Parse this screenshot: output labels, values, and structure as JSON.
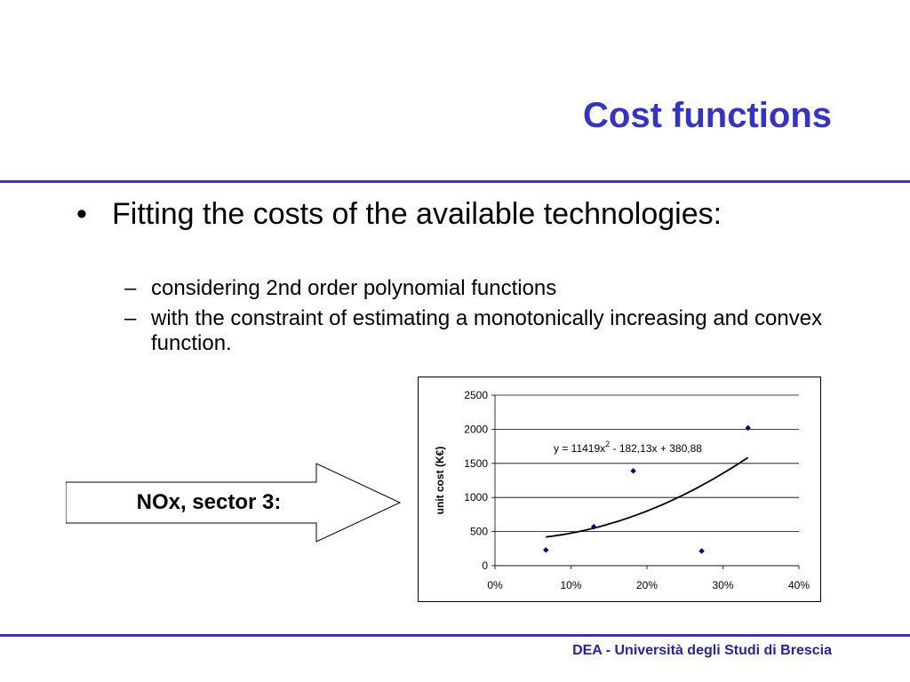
{
  "slide": {
    "title": "Cost functions",
    "bullet": {
      "symbol": "•",
      "text": "Fitting the costs of the available technologies:",
      "subitems": [
        {
          "dash": "–",
          "text": "considering 2nd order polynomial functions"
        },
        {
          "dash": "–",
          "text": "with the constraint of estimating a monotonically increasing and convex function."
        }
      ]
    },
    "arrow_label": "NOx, sector 3:",
    "footer": "DEA - Università degli Studi di Brescia",
    "colors": {
      "accent": "#3333cc",
      "footer": "#2222aa",
      "marker": "#000080"
    }
  },
  "chart_data": {
    "type": "scatter",
    "ylabel": "unit cost (K€)",
    "xlabel": "",
    "xlim": [
      0,
      0.4
    ],
    "ylim": [
      0,
      2500
    ],
    "x_ticks": [
      "0%",
      "10%",
      "20%",
      "30%",
      "40%"
    ],
    "y_ticks": [
      "0",
      "500",
      "1000",
      "1500",
      "2000",
      "2500"
    ],
    "grid": "horizontal",
    "points": [
      {
        "x": 0.067,
        "y": 230
      },
      {
        "x": 0.13,
        "y": 570
      },
      {
        "x": 0.182,
        "y": 1390
      },
      {
        "x": 0.272,
        "y": 215
      },
      {
        "x": 0.333,
        "y": 2020
      }
    ],
    "fit": {
      "equation_prefix": "y = 11419x",
      "equation_exponent": "2",
      "equation_suffix": " - 182,13x + 380,88",
      "a": 11419,
      "b": -182.13,
      "c": 380.88,
      "x_range": [
        0.067,
        0.333
      ]
    }
  }
}
